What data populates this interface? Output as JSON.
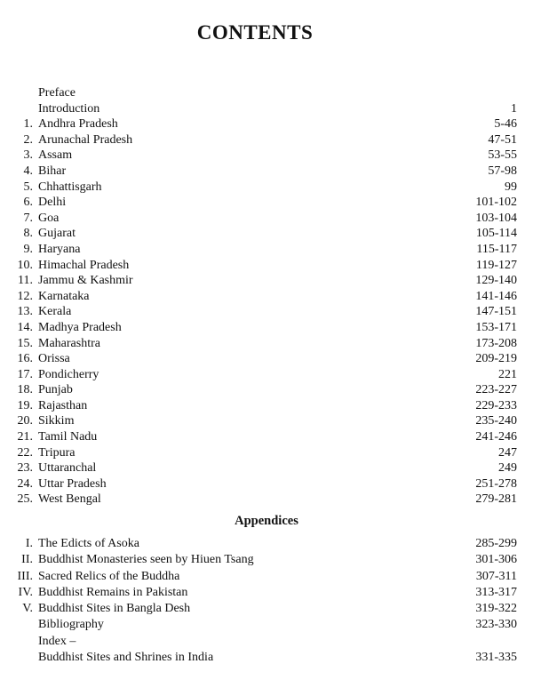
{
  "title": "CONTENTS",
  "entries": [
    {
      "num": "",
      "label": "Preface",
      "page": ""
    },
    {
      "num": "",
      "label": "Introduction",
      "page": "1"
    },
    {
      "num": "1.",
      "label": "Andhra Pradesh",
      "page": "5-46"
    },
    {
      "num": "2.",
      "label": "Arunachal Pradesh",
      "page": "47-51"
    },
    {
      "num": "3.",
      "label": "Assam",
      "page": "53-55"
    },
    {
      "num": "4.",
      "label": "Bihar",
      "page": "57-98"
    },
    {
      "num": "5.",
      "label": "Chhattisgarh",
      "page": "99"
    },
    {
      "num": "6.",
      "label": "Delhi",
      "page": "101-102"
    },
    {
      "num": "7.",
      "label": "Goa",
      "page": "103-104"
    },
    {
      "num": "8.",
      "label": "Gujarat",
      "page": "105-114"
    },
    {
      "num": "9.",
      "label": "Haryana",
      "page": "115-117"
    },
    {
      "num": "10.",
      "label": "Himachal Pradesh",
      "page": "119-127"
    },
    {
      "num": "11.",
      "label": "Jammu & Kashmir",
      "page": "129-140"
    },
    {
      "num": "12.",
      "label": "Karnataka",
      "page": "141-146"
    },
    {
      "num": "13.",
      "label": "Kerala",
      "page": "147-151"
    },
    {
      "num": "14.",
      "label": "Madhya Pradesh",
      "page": "153-171"
    },
    {
      "num": "15.",
      "label": "Maharashtra",
      "page": "173-208"
    },
    {
      "num": "16.",
      "label": "Orissa",
      "page": "209-219"
    },
    {
      "num": "17.",
      "label": "Pondicherry",
      "page": "221"
    },
    {
      "num": "18.",
      "label": "Punjab",
      "page": "223-227"
    },
    {
      "num": "19.",
      "label": "Rajasthan",
      "page": "229-233"
    },
    {
      "num": "20.",
      "label": "Sikkim",
      "page": "235-240"
    },
    {
      "num": "21.",
      "label": "Tamil Nadu",
      "page": "241-246"
    },
    {
      "num": "22.",
      "label": "Tripura",
      "page": "247"
    },
    {
      "num": "23.",
      "label": "Uttaranchal",
      "page": "249"
    },
    {
      "num": "24.",
      "label": "Uttar Pradesh",
      "page": "251-278"
    },
    {
      "num": "25.",
      "label": "West Bengal",
      "page": "279-281"
    }
  ],
  "appendices_heading": "Appendices",
  "appendices": [
    {
      "num": "I.",
      "label": "The Edicts of Asoka",
      "page": "285-299"
    },
    {
      "num": "II.",
      "label": "Buddhist Monasteries seen by Hiuen Tsang",
      "page": "301-306"
    },
    {
      "num": "III.",
      "label": "Sacred Relics of the Buddha",
      "page": "307-311"
    },
    {
      "num": "IV.",
      "label": "Buddhist Remains in Pakistan",
      "page": "313-317"
    },
    {
      "num": "V.",
      "label": "Buddhist Sites in Bangla Desh",
      "page": "319-322"
    },
    {
      "num": "",
      "label": "Bibliography",
      "page": "323-330"
    },
    {
      "num": "",
      "label": "Index –",
      "page": ""
    },
    {
      "num": "",
      "label": "Buddhist Sites and Shrines in India",
      "page": "331-335"
    }
  ]
}
